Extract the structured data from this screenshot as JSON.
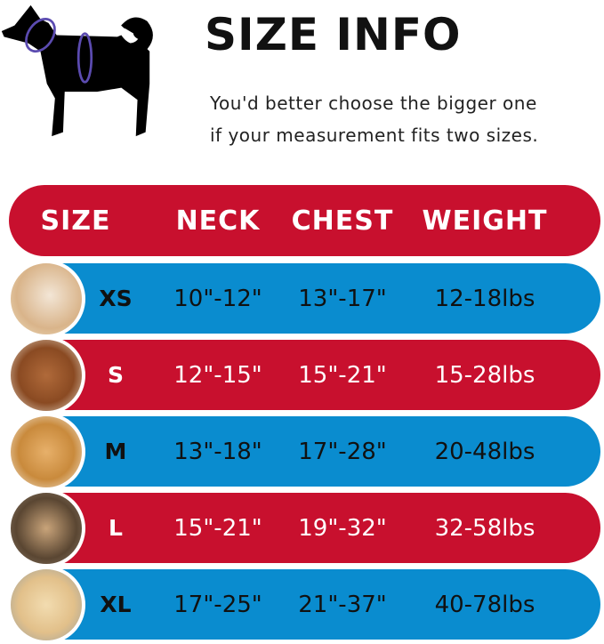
{
  "title": "SIZE INFO",
  "subtitle": [
    "You'd better choose the bigger one",
    "if your measurement fits two sizes."
  ],
  "colors": {
    "red": "#c8102e",
    "blue": "#0a8ccf",
    "measure_ring": "#5b4bb0"
  },
  "headers": [
    "SIZE",
    "NECK",
    "CHEST",
    "WEIGHT"
  ],
  "rows": [
    {
      "size": "XS",
      "neck": "10\"-12\"",
      "chest": "13\"-17\"",
      "weight": "12-18lbs",
      "color": "blue",
      "photo": "pomeranian-photo"
    },
    {
      "size": "S",
      "neck": "12\"-15\"",
      "chest": "15\"-21\"",
      "weight": "15-28lbs",
      "color": "red",
      "photo": "poodle-photo"
    },
    {
      "size": "M",
      "neck": "13\"-18\"",
      "chest": "17\"-28\"",
      "weight": "20-48lbs",
      "color": "blue",
      "photo": "shiba-photo"
    },
    {
      "size": "L",
      "neck": "15\"-21\"",
      "chest": "19\"-32\"",
      "weight": "32-58lbs",
      "color": "red",
      "photo": "french-bulldog-photo"
    },
    {
      "size": "XL",
      "neck": "17\"-25\"",
      "chest": "21\"-37\"",
      "weight": "40-78lbs",
      "color": "blue",
      "photo": "labrador-photo"
    }
  ]
}
